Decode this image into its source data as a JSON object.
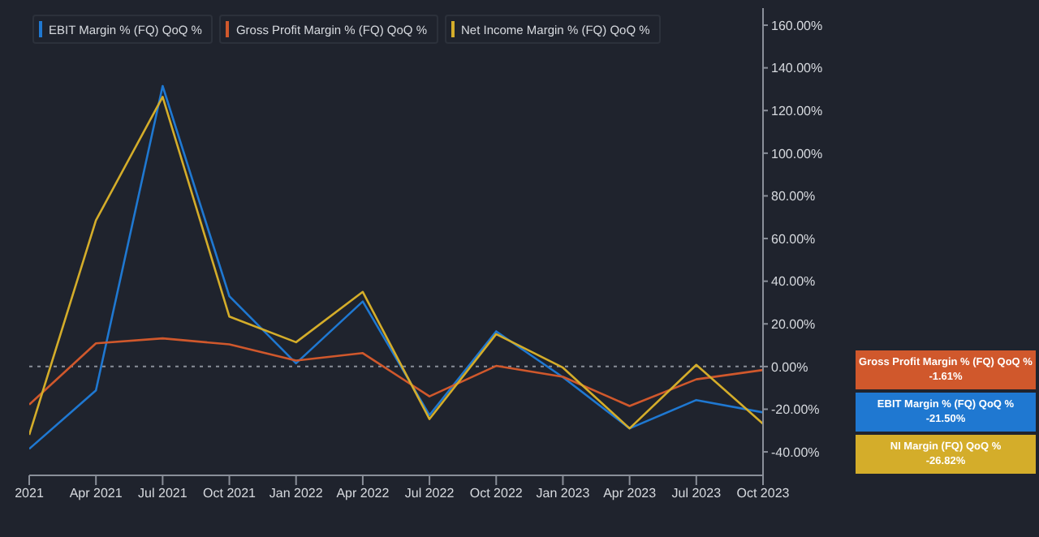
{
  "chart_data": {
    "type": "line",
    "categories": [
      "2021",
      "Apr 2021",
      "Jul 2021",
      "Oct 2021",
      "Jan 2022",
      "Apr 2022",
      "Jul 2022",
      "Oct 2022",
      "Jan 2023",
      "Apr 2023",
      "Jul 2023",
      "Oct 2023"
    ],
    "series": [
      {
        "name": "EBIT Margin % (FQ) QoQ %",
        "color": "#1f78d1",
        "values": [
          -38.6,
          -11.2,
          131.5,
          33,
          1.5,
          30.5,
          -22.8,
          16.5,
          -5,
          -29,
          -15.7,
          -21.5
        ]
      },
      {
        "name": "Gross Profit Margin % (FQ) QoQ %",
        "color": "#d0582c",
        "values": [
          -17.8,
          10.9,
          13.2,
          10.4,
          2.8,
          6.3,
          -14,
          0.3,
          -4.8,
          -18.5,
          -6,
          -1.61
        ]
      },
      {
        "name": "Net Income Margin % (FQ) QoQ %",
        "color": "#d4ad2a",
        "values": [
          -32,
          68.5,
          126.4,
          23.4,
          11.4,
          35,
          -24.6,
          15.2,
          -0.5,
          -29,
          0.8,
          -26.82
        ]
      }
    ],
    "ylim": [
      -51,
      168
    ],
    "yticks": [
      {
        "value": -40,
        "label": "-40.00%"
      },
      {
        "value": -20,
        "label": "-20.00%"
      },
      {
        "value": 0,
        "label": "0.00%"
      },
      {
        "value": 20,
        "label": "20.00%"
      },
      {
        "value": 40,
        "label": "40.00%"
      },
      {
        "value": 60,
        "label": "60.00%"
      },
      {
        "value": 80,
        "label": "80.00%"
      },
      {
        "value": 100,
        "label": "100.00%"
      },
      {
        "value": 120,
        "label": "120.00%"
      },
      {
        "value": 140,
        "label": "140.00%"
      },
      {
        "value": 160,
        "label": "160.00%"
      }
    ],
    "ref_lines": [
      {
        "axis": "y",
        "value": 0,
        "line_style": "dotted",
        "color": "#8a8f99"
      }
    ],
    "annotations": [
      "EBIT Margin % (FQ) QoQ %\n-21.50%",
      "Gross Profit Margin % (FQ) QoQ %\n-1.61%",
      "NI Margin (FQ) QoQ %\n-26.82%"
    ],
    "legend": "top left",
    "grid": false,
    "marker": "none",
    "line_style": "solid"
  }
}
